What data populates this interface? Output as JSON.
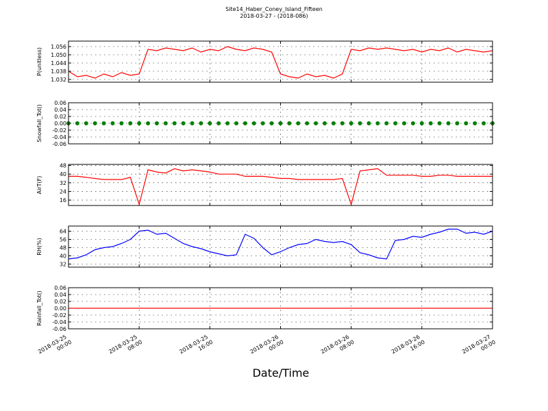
{
  "title": "Site14_Haber_Coney_Island_Fifteen",
  "subtitle": "2018-03-27 - (2018-086)",
  "xlabel": "Date/Time",
  "chart_data": [
    {
      "type": "line",
      "ylabel": "P(unitless)",
      "x": [
        "2018-03-25 00:00",
        "2018-03-25 01:00",
        "2018-03-25 02:00",
        "2018-03-25 03:00",
        "2018-03-25 04:00",
        "2018-03-25 05:00",
        "2018-03-25 06:00",
        "2018-03-25 07:00",
        "2018-03-25 08:00",
        "2018-03-25 09:00",
        "2018-03-25 10:00",
        "2018-03-25 11:00",
        "2018-03-25 12:00",
        "2018-03-25 13:00",
        "2018-03-25 14:00",
        "2018-03-25 15:00",
        "2018-03-25 16:00",
        "2018-03-25 17:00",
        "2018-03-25 18:00",
        "2018-03-25 19:00",
        "2018-03-25 20:00",
        "2018-03-25 21:00",
        "2018-03-25 22:00",
        "2018-03-25 23:00",
        "2018-03-26 00:00",
        "2018-03-26 01:00",
        "2018-03-26 02:00",
        "2018-03-26 03:00",
        "2018-03-26 04:00",
        "2018-03-26 05:00",
        "2018-03-26 06:00",
        "2018-03-26 07:00",
        "2018-03-26 08:00",
        "2018-03-26 09:00",
        "2018-03-26 10:00",
        "2018-03-26 11:00",
        "2018-03-26 12:00",
        "2018-03-26 13:00",
        "2018-03-26 14:00",
        "2018-03-26 15:00",
        "2018-03-26 16:00",
        "2018-03-26 17:00",
        "2018-03-26 18:00",
        "2018-03-26 19:00",
        "2018-03-26 20:00",
        "2018-03-26 21:00",
        "2018-03-26 22:00",
        "2018-03-26 23:00",
        "2018-03-27 00:00"
      ],
      "xlim": [
        "2018-03-25 00:00",
        "2018-03-27 00:00"
      ],
      "xticks": [
        "2018-03-25 00:00",
        "2018-03-25 08:00",
        "2018-03-25 16:00",
        "2018-03-26 00:00",
        "2018-03-26 08:00",
        "2018-03-26 16:00",
        "2018-03-27 00:00"
      ],
      "ylim": [
        1.03,
        1.06
      ],
      "yticks": [
        1.032,
        1.038,
        1.044,
        {
          "value": 1.05,
          "label": "1.050"
        },
        1.056
      ],
      "series": [
        {
          "color": "#ff0000",
          "values": [
            1.038,
            1.034,
            1.035,
            1.033,
            1.036,
            1.034,
            1.037,
            1.035,
            1.036,
            1.054,
            1.053,
            1.055,
            1.054,
            1.053,
            1.055,
            1.052,
            1.054,
            1.053,
            1.056,
            1.054,
            1.053,
            1.055,
            1.054,
            1.052,
            1.036,
            1.034,
            1.033,
            1.036,
            1.034,
            1.035,
            1.033,
            1.036,
            1.054,
            1.053,
            1.055,
            1.054,
            1.055,
            1.054,
            1.053,
            1.054,
            1.052,
            1.054,
            1.053,
            1.055,
            1.052,
            1.054,
            1.053,
            1.052,
            1.053
          ]
        }
      ]
    },
    {
      "type": "scatter",
      "ylabel": "Snowfall_Tot()",
      "x": [
        "2018-03-25 00:00",
        "2018-03-25 01:00",
        "2018-03-25 02:00",
        "2018-03-25 03:00",
        "2018-03-25 04:00",
        "2018-03-25 05:00",
        "2018-03-25 06:00",
        "2018-03-25 07:00",
        "2018-03-25 08:00",
        "2018-03-25 09:00",
        "2018-03-25 10:00",
        "2018-03-25 11:00",
        "2018-03-25 12:00",
        "2018-03-25 13:00",
        "2018-03-25 14:00",
        "2018-03-25 15:00",
        "2018-03-25 16:00",
        "2018-03-25 17:00",
        "2018-03-25 18:00",
        "2018-03-25 19:00",
        "2018-03-25 20:00",
        "2018-03-25 21:00",
        "2018-03-25 22:00",
        "2018-03-25 23:00",
        "2018-03-26 00:00",
        "2018-03-26 01:00",
        "2018-03-26 02:00",
        "2018-03-26 03:00",
        "2018-03-26 04:00",
        "2018-03-26 05:00",
        "2018-03-26 06:00",
        "2018-03-26 07:00",
        "2018-03-26 08:00",
        "2018-03-26 09:00",
        "2018-03-26 10:00",
        "2018-03-26 11:00",
        "2018-03-26 12:00",
        "2018-03-26 13:00",
        "2018-03-26 14:00",
        "2018-03-26 15:00",
        "2018-03-26 16:00",
        "2018-03-26 17:00",
        "2018-03-26 18:00",
        "2018-03-26 19:00",
        "2018-03-26 20:00",
        "2018-03-26 21:00",
        "2018-03-26 22:00",
        "2018-03-26 23:00",
        "2018-03-27 00:00"
      ],
      "xlim": [
        "2018-03-25 00:00",
        "2018-03-27 00:00"
      ],
      "xticks": [
        "2018-03-25 00:00",
        "2018-03-25 08:00",
        "2018-03-25 16:00",
        "2018-03-26 00:00",
        "2018-03-26 08:00",
        "2018-03-26 16:00",
        "2018-03-27 00:00"
      ],
      "ylim": [
        -0.06,
        0.06
      ],
      "yticks": [
        -0.06,
        -0.04,
        -0.02,
        {
          "value": 0,
          "label": "0.00"
        },
        0.02,
        0.04,
        0.06
      ],
      "series": [
        {
          "color": "#008000",
          "values": [
            0,
            0,
            0,
            0,
            0,
            0,
            0,
            0,
            0,
            0,
            0,
            0,
            0,
            0,
            0,
            0,
            0,
            0,
            0,
            0,
            0,
            0,
            0,
            0,
            0,
            0,
            0,
            0,
            0,
            0,
            0,
            0,
            0,
            0,
            0,
            0,
            0,
            0,
            0,
            0,
            0,
            0,
            0,
            0,
            0,
            0,
            0,
            0,
            0
          ]
        }
      ]
    },
    {
      "type": "line",
      "ylabel": "AirT(F)",
      "x": [
        "2018-03-25 00:00",
        "2018-03-25 01:00",
        "2018-03-25 02:00",
        "2018-03-25 03:00",
        "2018-03-25 04:00",
        "2018-03-25 05:00",
        "2018-03-25 06:00",
        "2018-03-25 07:00",
        "2018-03-25 08:00",
        "2018-03-25 09:00",
        "2018-03-25 10:00",
        "2018-03-25 11:00",
        "2018-03-25 12:00",
        "2018-03-25 13:00",
        "2018-03-25 14:00",
        "2018-03-25 15:00",
        "2018-03-25 16:00",
        "2018-03-25 17:00",
        "2018-03-25 18:00",
        "2018-03-25 19:00",
        "2018-03-25 20:00",
        "2018-03-25 21:00",
        "2018-03-25 22:00",
        "2018-03-25 23:00",
        "2018-03-26 00:00",
        "2018-03-26 01:00",
        "2018-03-26 02:00",
        "2018-03-26 03:00",
        "2018-03-26 04:00",
        "2018-03-26 05:00",
        "2018-03-26 06:00",
        "2018-03-26 07:00",
        "2018-03-26 08:00",
        "2018-03-26 09:00",
        "2018-03-26 10:00",
        "2018-03-26 11:00",
        "2018-03-26 12:00",
        "2018-03-26 13:00",
        "2018-03-26 14:00",
        "2018-03-26 15:00",
        "2018-03-26 16:00",
        "2018-03-26 17:00",
        "2018-03-26 18:00",
        "2018-03-26 19:00",
        "2018-03-26 20:00",
        "2018-03-26 21:00",
        "2018-03-26 22:00",
        "2018-03-26 23:00",
        "2018-03-27 00:00"
      ],
      "xlim": [
        "2018-03-25 00:00",
        "2018-03-27 00:00"
      ],
      "xticks": [
        "2018-03-25 00:00",
        "2018-03-25 08:00",
        "2018-03-25 16:00",
        "2018-03-26 00:00",
        "2018-03-26 08:00",
        "2018-03-26 16:00",
        "2018-03-27 00:00"
      ],
      "ylim": [
        11,
        49
      ],
      "yticks": [
        16,
        24,
        32,
        40,
        48
      ],
      "series": [
        {
          "color": "#ff0000",
          "values": [
            38,
            38,
            37,
            36,
            35,
            35,
            35,
            37,
            12,
            44,
            42,
            41,
            45,
            43,
            44,
            43,
            42,
            40,
            40,
            40,
            38,
            38,
            38,
            37,
            36,
            36,
            35,
            35,
            35,
            35,
            35,
            36,
            12,
            43,
            44,
            45,
            39,
            39,
            39,
            39,
            38,
            38,
            39,
            39,
            38,
            38,
            38,
            38,
            38
          ]
        }
      ]
    },
    {
      "type": "line",
      "ylabel": "RH(%)",
      "x": [
        "2018-03-25 00:00",
        "2018-03-25 01:00",
        "2018-03-25 02:00",
        "2018-03-25 03:00",
        "2018-03-25 04:00",
        "2018-03-25 05:00",
        "2018-03-25 06:00",
        "2018-03-25 07:00",
        "2018-03-25 08:00",
        "2018-03-25 09:00",
        "2018-03-25 10:00",
        "2018-03-25 11:00",
        "2018-03-25 12:00",
        "2018-03-25 13:00",
        "2018-03-25 14:00",
        "2018-03-25 15:00",
        "2018-03-25 16:00",
        "2018-03-25 17:00",
        "2018-03-25 18:00",
        "2018-03-25 19:00",
        "2018-03-25 20:00",
        "2018-03-25 21:00",
        "2018-03-25 22:00",
        "2018-03-25 23:00",
        "2018-03-26 00:00",
        "2018-03-26 01:00",
        "2018-03-26 02:00",
        "2018-03-26 03:00",
        "2018-03-26 04:00",
        "2018-03-26 05:00",
        "2018-03-26 06:00",
        "2018-03-26 07:00",
        "2018-03-26 08:00",
        "2018-03-26 09:00",
        "2018-03-26 10:00",
        "2018-03-26 11:00",
        "2018-03-26 12:00",
        "2018-03-26 13:00",
        "2018-03-26 14:00",
        "2018-03-26 15:00",
        "2018-03-26 16:00",
        "2018-03-26 17:00",
        "2018-03-26 18:00",
        "2018-03-26 19:00",
        "2018-03-26 20:00",
        "2018-03-26 21:00",
        "2018-03-26 22:00",
        "2018-03-26 23:00",
        "2018-03-27 00:00"
      ],
      "xlim": [
        "2018-03-25 00:00",
        "2018-03-27 00:00"
      ],
      "xticks": [
        "2018-03-25 00:00",
        "2018-03-25 08:00",
        "2018-03-25 16:00",
        "2018-03-26 00:00",
        "2018-03-26 08:00",
        "2018-03-26 16:00",
        "2018-03-27 00:00"
      ],
      "ylim": [
        29,
        69
      ],
      "yticks": [
        32,
        40,
        48,
        56,
        64
      ],
      "series": [
        {
          "color": "#0000ff",
          "values": [
            37,
            38,
            41,
            46,
            48,
            49,
            52,
            56,
            64,
            65,
            61,
            62,
            57,
            52,
            49,
            47,
            44,
            42,
            40,
            41,
            61,
            57,
            48,
            41,
            44,
            48,
            51,
            52,
            56,
            54,
            53,
            54,
            51,
            43,
            41,
            38,
            37,
            55,
            56,
            59,
            58,
            61,
            63,
            66,
            66,
            62,
            63,
            61,
            64
          ]
        }
      ]
    },
    {
      "type": "line",
      "ylabel": "Rainfall_Tot()",
      "x": [
        "2018-03-25 00:00",
        "2018-03-25 01:00",
        "2018-03-25 02:00",
        "2018-03-25 03:00",
        "2018-03-25 04:00",
        "2018-03-25 05:00",
        "2018-03-25 06:00",
        "2018-03-25 07:00",
        "2018-03-25 08:00",
        "2018-03-25 09:00",
        "2018-03-25 10:00",
        "2018-03-25 11:00",
        "2018-03-25 12:00",
        "2018-03-25 13:00",
        "2018-03-25 14:00",
        "2018-03-25 15:00",
        "2018-03-25 16:00",
        "2018-03-25 17:00",
        "2018-03-25 18:00",
        "2018-03-25 19:00",
        "2018-03-25 20:00",
        "2018-03-25 21:00",
        "2018-03-25 22:00",
        "2018-03-25 23:00",
        "2018-03-26 00:00",
        "2018-03-26 01:00",
        "2018-03-26 02:00",
        "2018-03-26 03:00",
        "2018-03-26 04:00",
        "2018-03-26 05:00",
        "2018-03-26 06:00",
        "2018-03-26 07:00",
        "2018-03-26 08:00",
        "2018-03-26 09:00",
        "2018-03-26 10:00",
        "2018-03-26 11:00",
        "2018-03-26 12:00",
        "2018-03-26 13:00",
        "2018-03-26 14:00",
        "2018-03-26 15:00",
        "2018-03-26 16:00",
        "2018-03-26 17:00",
        "2018-03-26 18:00",
        "2018-03-26 19:00",
        "2018-03-26 20:00",
        "2018-03-26 21:00",
        "2018-03-26 22:00",
        "2018-03-26 23:00",
        "2018-03-27 00:00"
      ],
      "xlim": [
        "2018-03-25 00:00",
        "2018-03-27 00:00"
      ],
      "xticks": [
        "2018-03-25 00:00",
        "2018-03-25 08:00",
        "2018-03-25 16:00",
        "2018-03-26 00:00",
        "2018-03-26 08:00",
        "2018-03-26 16:00",
        "2018-03-27 00:00"
      ],
      "ylim": [
        -0.06,
        0.06
      ],
      "yticks": [
        -0.06,
        -0.04,
        -0.02,
        {
          "value": 0,
          "label": "0.00"
        },
        0.02,
        0.04,
        0.06
      ],
      "series": [
        {
          "color": "#ff0000",
          "values": [
            0,
            0,
            0,
            0,
            0,
            0,
            0,
            0,
            0,
            0,
            0,
            0,
            0,
            0,
            0,
            0,
            0,
            0,
            0,
            0,
            0,
            0,
            0,
            0,
            0,
            0,
            0,
            0,
            0,
            0,
            0,
            0,
            0,
            0,
            0,
            0,
            0,
            0,
            0,
            0,
            0,
            0,
            0,
            0,
            0,
            0,
            0,
            0,
            0
          ]
        }
      ]
    }
  ]
}
